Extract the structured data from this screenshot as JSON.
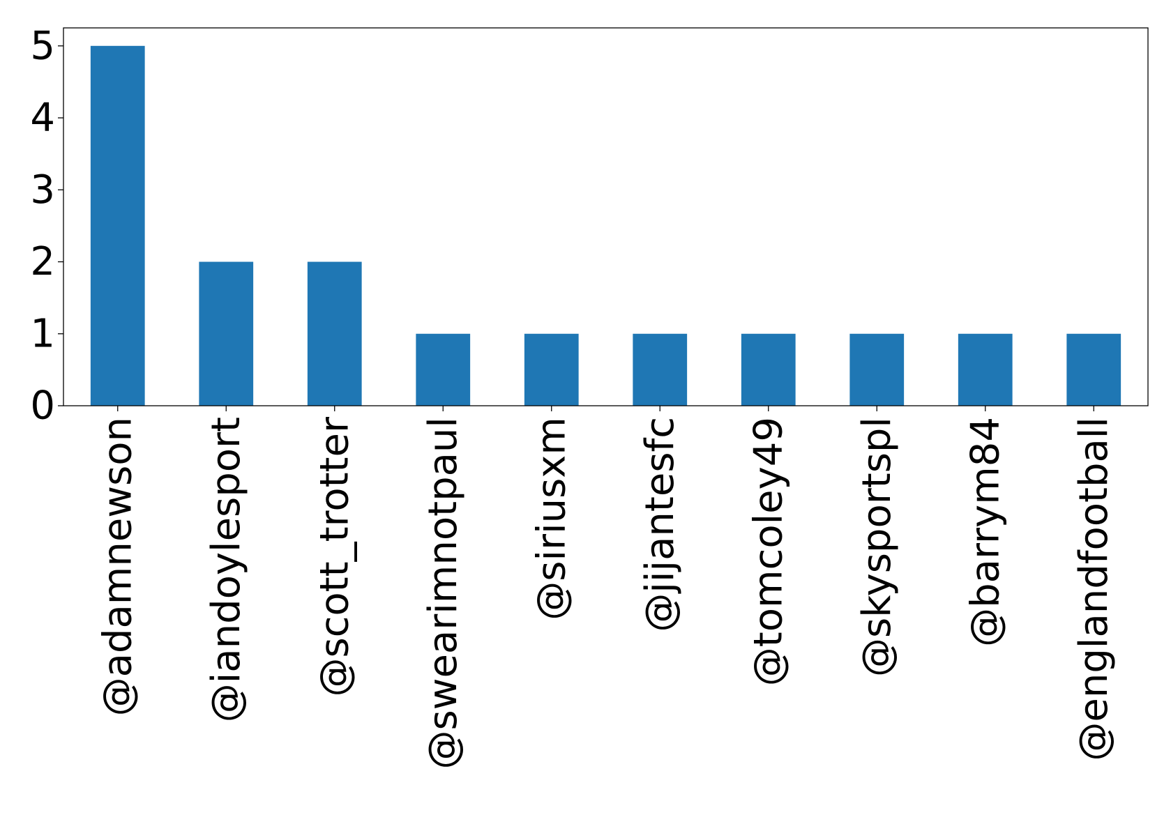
{
  "chart_data": {
    "type": "bar",
    "title": "",
    "xlabel": "",
    "ylabel": "",
    "categories": [
      "@adamnewson",
      "@iandoylesport",
      "@scott_trotter",
      "@swearimnotpaul",
      "@siriusxm",
      "@jijantesfc",
      "@tomcoley49",
      "@skysportspl",
      "@barrym84",
      "@englandfootball"
    ],
    "values": [
      5,
      2,
      2,
      1,
      1,
      1,
      1,
      1,
      1,
      1
    ],
    "ylim": [
      0,
      5.25
    ],
    "yticks": [
      "0",
      "1",
      "2",
      "3",
      "4",
      "5"
    ],
    "grid": false,
    "legend": "none",
    "bar_color": "#1f77b4"
  }
}
